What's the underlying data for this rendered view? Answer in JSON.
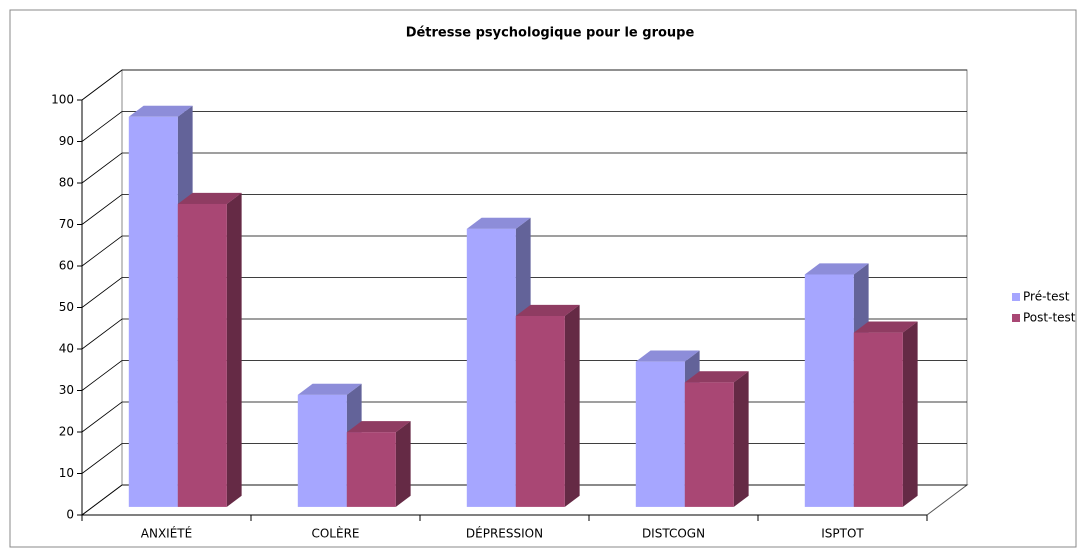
{
  "chart_data": {
    "type": "bar3d",
    "title": "Détresse psychologique pour le groupe",
    "categories": [
      "ANXIÉTÉ",
      "COLÈRE",
      "DÉPRESSION",
      "DISTCOGN",
      "ISPTOT"
    ],
    "series": [
      {
        "name": "Pré-test",
        "color": "#a6a6ff",
        "values": [
          94,
          27,
          67,
          35,
          56
        ]
      },
      {
        "name": "Post-test",
        "color": "#a94774",
        "values": [
          73,
          18,
          46,
          30,
          42
        ]
      }
    ],
    "ylim": [
      0,
      100
    ],
    "yticks": [
      0,
      10,
      20,
      30,
      40,
      50,
      60,
      70,
      80,
      90,
      100
    ],
    "grid": true,
    "legend": "right"
  }
}
